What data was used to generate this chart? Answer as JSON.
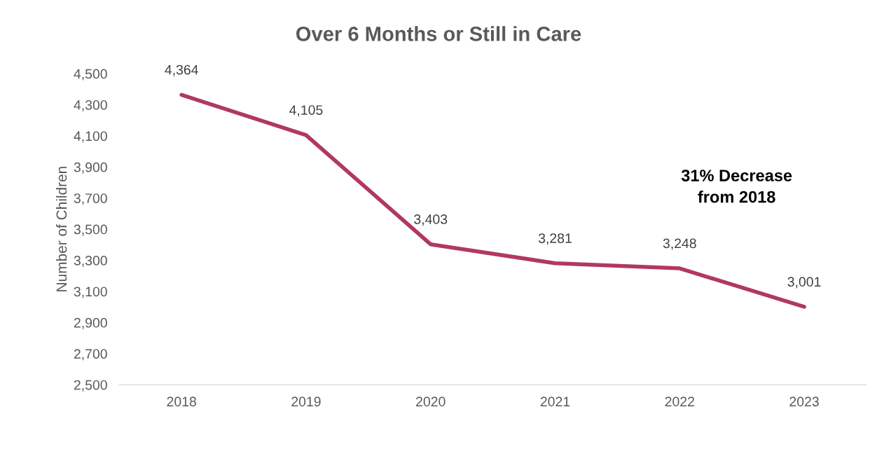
{
  "chart_data": {
    "type": "line",
    "title": "Over 6 Months or Still in Care",
    "ylabel": "Number of Children",
    "categories": [
      "2018",
      "2019",
      "2020",
      "2021",
      "2022",
      "2023"
    ],
    "series": [
      {
        "color": "#b0395e",
        "values": [
          4364,
          4105,
          3403,
          3281,
          3248,
          3001
        ]
      }
    ],
    "ylim": [
      2500,
      4500
    ],
    "yticks": [
      {
        "value": 2500,
        "label": "2,500"
      },
      {
        "value": 2700,
        "label": "2,700"
      },
      {
        "value": 2900,
        "label": "2,900"
      },
      {
        "value": 3100,
        "label": "3,100"
      },
      {
        "value": 3300,
        "label": "3,300"
      },
      {
        "value": 3500,
        "label": "3,500"
      },
      {
        "value": 3700,
        "label": "3,700"
      },
      {
        "value": 3900,
        "label": "3,900"
      },
      {
        "value": 4100,
        "label": "4,100"
      },
      {
        "value": 4300,
        "label": "4,300"
      },
      {
        "value": 4500,
        "label": "4,500"
      }
    ],
    "value_labels": [
      "4,364",
      "4,105",
      "3,403",
      "3,281",
      "3,248",
      "3,001"
    ],
    "annotations": [
      "31% Decrease\nfrom 2018"
    ],
    "grid": false,
    "legend": false,
    "marker": "none",
    "line_style": "solid"
  }
}
